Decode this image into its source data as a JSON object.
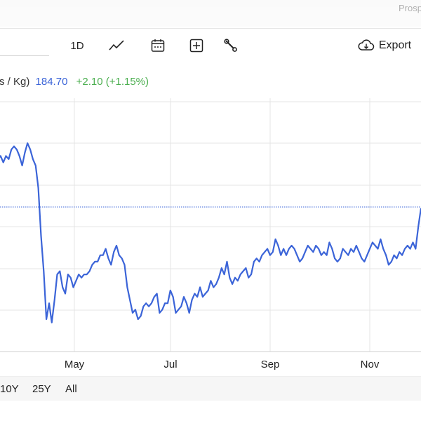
{
  "header": {
    "corner_text": "Prosp"
  },
  "toolbar": {
    "interval_label": "1D",
    "export_label": "Export",
    "icons": [
      "line-chart-icon",
      "calendar-icon",
      "plus-box-icon",
      "wrench-icon",
      "cloud-download-icon"
    ]
  },
  "quote": {
    "label": "s / Kg)",
    "price": "184.70",
    "change": "+2.10 (+1.15%)"
  },
  "colors": {
    "line": "#3b64d8",
    "change": "#4caf50",
    "grid": "#e4e4e4"
  },
  "ranges": [
    "10Y",
    "25Y",
    "All"
  ],
  "chart_data": {
    "type": "line",
    "xlabel": "",
    "ylabel": "",
    "x_ticks": [
      "May",
      "Jul",
      "Sep",
      "Nov"
    ],
    "y_ticks": [],
    "grid": true,
    "reference_line": "dashed horizontal reference line",
    "points_note": "price series, values in price units (estimated)",
    "series": [
      {
        "values": [
          200,
          201,
          199,
          201,
          200,
          203,
          204,
          203,
          201,
          198,
          202,
          205,
          203,
          200,
          198,
          191,
          176,
          165,
          150,
          155,
          149,
          156,
          164,
          165,
          160,
          158,
          164,
          163,
          160,
          162,
          164,
          163,
          164,
          164,
          165,
          167,
          168,
          168,
          170,
          170,
          172,
          169,
          167,
          171,
          173,
          170,
          169,
          167,
          160,
          156,
          152,
          153,
          150,
          151,
          154,
          155,
          154,
          155,
          157,
          158,
          152,
          153,
          155,
          155,
          159,
          157,
          152,
          153,
          154,
          157,
          155,
          152,
          156,
          158,
          157,
          160,
          157,
          158,
          159,
          162,
          160,
          161,
          163,
          166,
          164,
          168,
          163,
          161,
          163,
          162,
          164,
          165,
          166,
          163,
          164,
          168,
          169,
          168,
          170,
          171,
          172,
          170,
          171,
          175,
          173,
          170,
          172,
          170,
          172,
          173,
          172,
          170,
          168,
          169,
          171,
          173,
          172,
          171,
          173,
          172,
          170,
          171,
          170,
          174,
          172,
          169,
          168,
          169,
          172,
          171,
          170,
          172,
          171,
          173,
          171,
          169,
          168,
          170,
          172,
          174,
          173,
          172,
          175,
          172,
          170,
          167,
          168,
          170,
          169,
          171,
          170,
          172,
          173,
          172,
          174,
          172,
          179,
          184.7
        ]
      }
    ]
  }
}
